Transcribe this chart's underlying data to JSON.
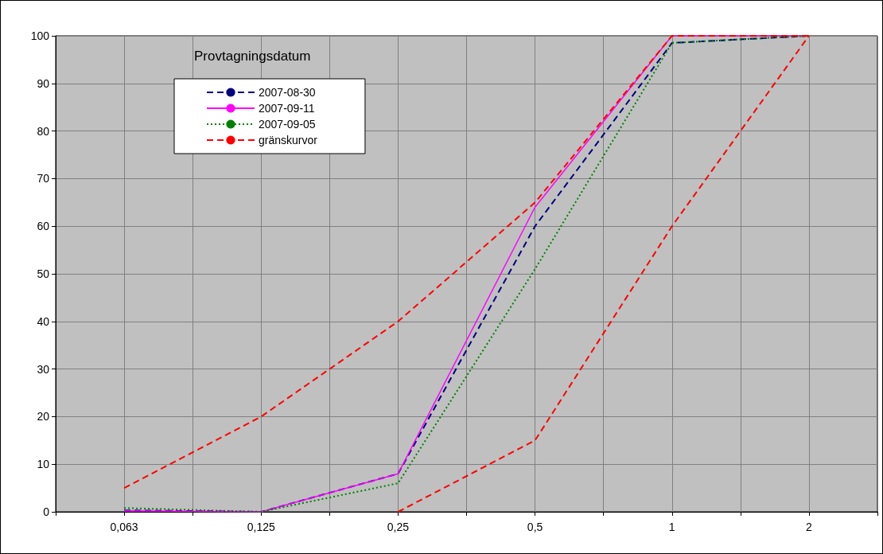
{
  "chart_data": {
    "type": "line",
    "legend_title": "Provtagningsdatum",
    "categories": [
      null,
      "0,063",
      null,
      "0,125",
      null,
      "0,25",
      null,
      "0,5",
      null,
      "1",
      null,
      "2",
      null
    ],
    "series": [
      {
        "name": "2007-08-30",
        "color": "#000080",
        "line_style": "dashed",
        "values": [
          null,
          0.3,
          null,
          0,
          null,
          8,
          null,
          60,
          null,
          98.5,
          null,
          100,
          null
        ]
      },
      {
        "name": "2007-09-11",
        "color": "#ff00ff",
        "line_style": "solid",
        "values": [
          null,
          0.2,
          null,
          0,
          null,
          8,
          null,
          64,
          null,
          100,
          null,
          100,
          null
        ]
      },
      {
        "name": "2007-09-05",
        "color": "#008000",
        "line_style": "dotted",
        "values": [
          null,
          0.8,
          null,
          0,
          null,
          6,
          null,
          51,
          null,
          98.5,
          null,
          100,
          null
        ]
      },
      {
        "name": "gränskurvor",
        "color": "#ff0000",
        "line_style": "dashed",
        "values": [
          null,
          5,
          null,
          20,
          null,
          40,
          null,
          65,
          null,
          100,
          null,
          100,
          null
        ]
      },
      {
        "color": "#ff0000",
        "line_style": "dashed",
        "values": [
          null,
          null,
          null,
          null,
          null,
          0,
          null,
          15,
          null,
          60,
          null,
          100,
          null
        ]
      }
    ],
    "ylim": [
      0,
      100
    ],
    "yticks": [
      0,
      10,
      20,
      30,
      40,
      50,
      60,
      70,
      80,
      90,
      100
    ],
    "grid": true,
    "legend": "top left",
    "marker": "none"
  }
}
